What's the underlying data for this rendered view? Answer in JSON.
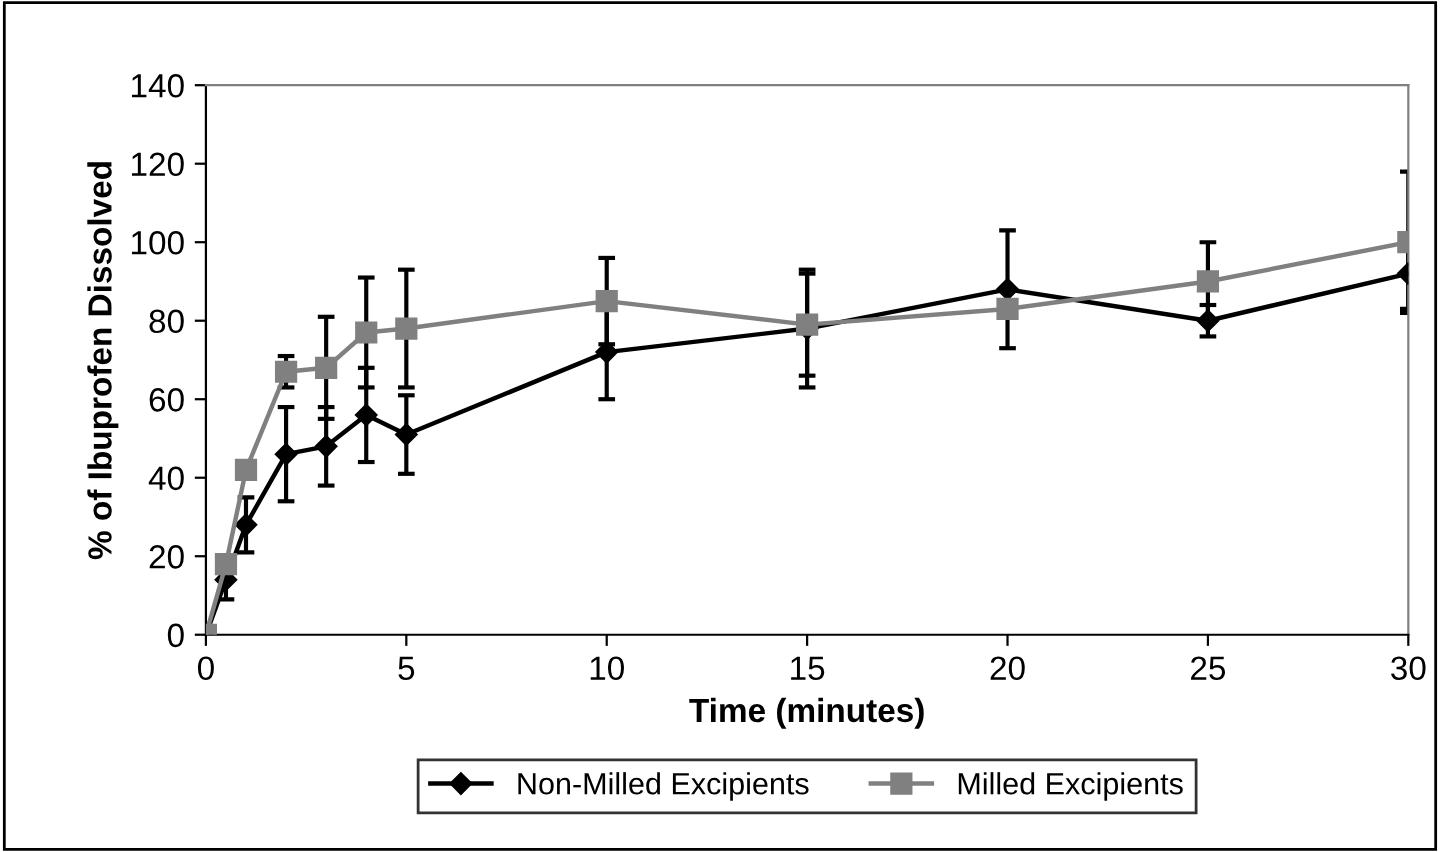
{
  "chart_data": {
    "type": "line",
    "xlabel": "Time (minutes)",
    "ylabel": "% of Ibuprofen Dissolved",
    "x": [
      0,
      0.5,
      1,
      2,
      3,
      4,
      5,
      10,
      15,
      20,
      25,
      30
    ],
    "series": [
      {
        "name": "Non-Milled Excipients",
        "color": "#000000",
        "marker": "diamond",
        "values": [
          0,
          14,
          28,
          46,
          48,
          56,
          51,
          72,
          78,
          88,
          80,
          92
        ],
        "errors": [
          null,
          5,
          7,
          12,
          10,
          12,
          10,
          12,
          15,
          15,
          4,
          9
        ]
      },
      {
        "name": "Milled Excipients",
        "color": "#808080",
        "marker": "square",
        "values": [
          0,
          18,
          42,
          67,
          68,
          77,
          78,
          85,
          79,
          83,
          90,
          100
        ],
        "errors": [
          null,
          null,
          null,
          4,
          13,
          14,
          15,
          11,
          13,
          null,
          10,
          18
        ]
      }
    ],
    "xlim": [
      0,
      30
    ],
    "xticks": [
      0,
      5,
      10,
      15,
      20,
      25,
      30
    ],
    "ylim": [
      0,
      140
    ],
    "yticks": [
      0,
      20,
      40,
      60,
      80,
      100,
      120,
      140
    ],
    "grid": false,
    "legend": "bottom",
    "line_style": "solid"
  }
}
